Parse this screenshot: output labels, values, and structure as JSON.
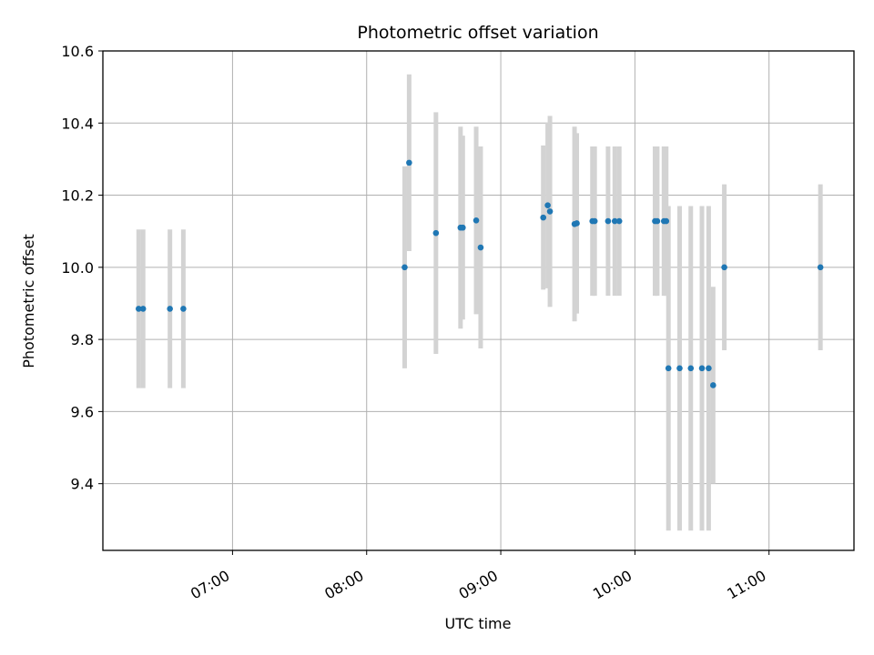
{
  "chart_data": {
    "type": "scatter",
    "title": "Photometric offset variation",
    "xlabel": "UTC time",
    "ylabel": "Photometric offset",
    "xlim": [
      "06:02",
      "11:38"
    ],
    "ylim": [
      9.215,
      10.6
    ],
    "grid": true,
    "x_ticks": [
      "07:00",
      "08:00",
      "09:00",
      "10:00",
      "11:00"
    ],
    "y_ticks": [
      9.4,
      9.6,
      9.8,
      10.0,
      10.2,
      10.4,
      10.6
    ],
    "y_tick_labels": [
      "9.4",
      "9.6",
      "9.8",
      "10.0",
      "10.2",
      "10.4",
      "10.6"
    ],
    "colors": {
      "point": "#1f77b4",
      "errorbar": "#d3d3d3",
      "grid": "#b0b0b0"
    },
    "series": [
      {
        "points": [
          {
            "x": "06:18",
            "y": 9.885,
            "err": 0.22
          },
          {
            "x": "06:20",
            "y": 9.885,
            "err": 0.22
          },
          {
            "x": "06:32",
            "y": 9.885,
            "err": 0.22
          },
          {
            "x": "06:38",
            "y": 9.885,
            "err": 0.22
          },
          {
            "x": "08:17",
            "y": 10.0,
            "err": 0.28
          },
          {
            "x": "08:19",
            "y": 10.29,
            "err": 0.245
          },
          {
            "x": "08:31",
            "y": 10.095,
            "err": 0.335
          },
          {
            "x": "08:42",
            "y": 10.11,
            "err": 0.28
          },
          {
            "x": "08:43",
            "y": 10.11,
            "err": 0.255
          },
          {
            "x": "08:49",
            "y": 10.13,
            "err": 0.26
          },
          {
            "x": "08:51",
            "y": 10.055,
            "err": 0.28
          },
          {
            "x": "09:19",
            "y": 10.138,
            "err": 0.2
          },
          {
            "x": "09:21",
            "y": 10.172,
            "err": 0.23
          },
          {
            "x": "09:22",
            "y": 10.155,
            "err": 0.265
          },
          {
            "x": "09:33",
            "y": 10.12,
            "err": 0.27
          },
          {
            "x": "09:34",
            "y": 10.122,
            "err": 0.25
          },
          {
            "x": "09:41",
            "y": 10.128,
            "err": 0.207
          },
          {
            "x": "09:42",
            "y": 10.128,
            "err": 0.207
          },
          {
            "x": "09:48",
            "y": 10.128,
            "err": 0.207
          },
          {
            "x": "09:51",
            "y": 10.128,
            "err": 0.207
          },
          {
            "x": "09:53",
            "y": 10.128,
            "err": 0.207
          },
          {
            "x": "10:09",
            "y": 10.128,
            "err": 0.207
          },
          {
            "x": "10:10",
            "y": 10.128,
            "err": 0.207
          },
          {
            "x": "10:13",
            "y": 10.128,
            "err": 0.207
          },
          {
            "x": "10:14",
            "y": 10.128,
            "err": 0.207
          },
          {
            "x": "10:15",
            "y": 9.72,
            "err": 0.45
          },
          {
            "x": "10:20",
            "y": 9.72,
            "err": 0.45
          },
          {
            "x": "10:25",
            "y": 9.72,
            "err": 0.45
          },
          {
            "x": "10:30",
            "y": 9.72,
            "err": 0.45
          },
          {
            "x": "10:33",
            "y": 9.72,
            "err": 0.45
          },
          {
            "x": "10:35",
            "y": 9.673,
            "err": 0.273
          },
          {
            "x": "10:40",
            "y": 10.0,
            "err": 0.23
          },
          {
            "x": "11:23",
            "y": 10.0,
            "err": 0.23
          }
        ]
      }
    ]
  }
}
